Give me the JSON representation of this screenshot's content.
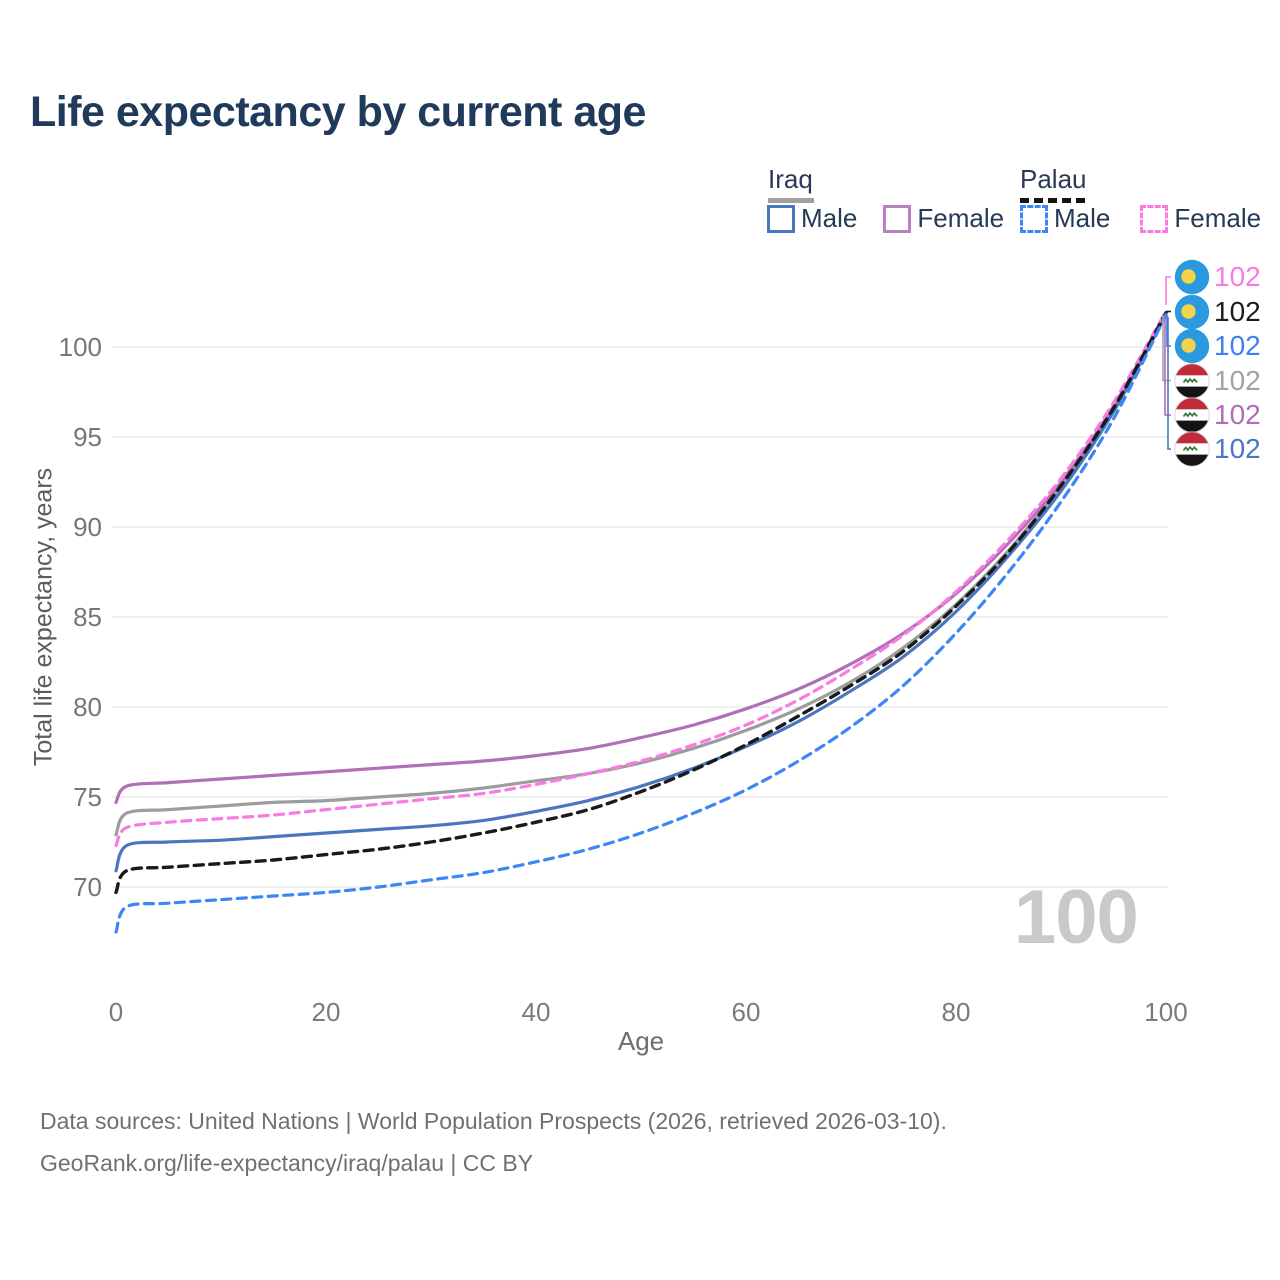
{
  "title": "Life expectancy by current age",
  "legend": {
    "groups": [
      {
        "name": "Iraq",
        "underline_style": "solid",
        "underline_color": "#a0a0a0",
        "items": [
          {
            "label": "Male",
            "color": "#4a76c0",
            "dashed": false
          },
          {
            "label": "Female",
            "color": "#bb80c4",
            "dashed": false
          }
        ]
      },
      {
        "name": "Palau",
        "underline_style": "dashed",
        "underline_color": "#141414",
        "items": [
          {
            "label": "Male",
            "color": "#3e86f5",
            "dashed": true
          },
          {
            "label": "Female",
            "color": "#fb7ae2",
            "dashed": true
          }
        ]
      }
    ]
  },
  "chart_data": {
    "type": "line",
    "title": "Life expectancy by current age",
    "xlabel": "Age",
    "ylabel": "Total life expectancy, years",
    "xlim": [
      0,
      100
    ],
    "ylim": [
      66.5,
      103
    ],
    "x_ticks": [
      0,
      20,
      40,
      60,
      80,
      100
    ],
    "y_ticks": [
      70,
      75,
      80,
      85,
      90,
      95,
      100
    ],
    "grid": "horizontal-only",
    "gridline_color": "#e7e7e7",
    "ages": [
      0,
      1,
      5,
      10,
      15,
      20,
      25,
      30,
      35,
      40,
      45,
      50,
      55,
      60,
      65,
      70,
      75,
      80,
      85,
      90,
      95,
      100
    ],
    "series": [
      {
        "name": "Iraq Female",
        "country": "Iraq",
        "sex": "Female",
        "color": "#b06fb8",
        "dashed": false,
        "values": [
          74.7,
          75.6,
          75.8,
          76.0,
          76.2,
          76.4,
          76.6,
          76.8,
          77.0,
          77.3,
          77.7,
          78.3,
          79.0,
          79.9,
          81.0,
          82.4,
          84.1,
          86.3,
          89.1,
          92.5,
          96.7,
          101.9
        ]
      },
      {
        "name": "Iraq Both sexes",
        "country": "Iraq",
        "sex": "Both",
        "color": "#9c9c9c",
        "dashed": false,
        "values": [
          72.9,
          74.1,
          74.3,
          74.5,
          74.7,
          74.8,
          75.0,
          75.2,
          75.5,
          75.9,
          76.3,
          76.9,
          77.7,
          78.7,
          79.9,
          81.4,
          83.3,
          85.7,
          88.7,
          92.3,
          96.6,
          101.9
        ]
      },
      {
        "name": "Iraq Male",
        "country": "Iraq",
        "sex": "Male",
        "color": "#4a76c0",
        "dashed": false,
        "values": [
          70.9,
          72.3,
          72.5,
          72.6,
          72.8,
          73.0,
          73.2,
          73.4,
          73.7,
          74.2,
          74.8,
          75.6,
          76.6,
          77.8,
          79.2,
          80.9,
          82.8,
          85.3,
          88.4,
          92.0,
          96.4,
          101.8
        ]
      },
      {
        "name": "Palau Female",
        "country": "Palau",
        "sex": "Female",
        "color": "#fb7ae2",
        "dashed": true,
        "values": [
          72.3,
          73.3,
          73.6,
          73.8,
          74.0,
          74.3,
          74.6,
          74.9,
          75.2,
          75.7,
          76.3,
          77.0,
          77.9,
          79.0,
          80.4,
          82.1,
          84.0,
          86.4,
          89.3,
          92.7,
          96.9,
          102.0
        ]
      },
      {
        "name": "Palau Both sexes",
        "country": "Palau",
        "sex": "Both",
        "color": "#1a1a1a",
        "dashed": true,
        "values": [
          69.7,
          70.9,
          71.1,
          71.3,
          71.5,
          71.8,
          72.1,
          72.5,
          73.0,
          73.6,
          74.3,
          75.3,
          76.5,
          77.9,
          79.5,
          81.2,
          83.1,
          85.6,
          88.6,
          92.3,
          96.6,
          101.9
        ]
      },
      {
        "name": "Palau Male",
        "country": "Palau",
        "sex": "Male",
        "color": "#3e86f5",
        "dashed": true,
        "values": [
          67.5,
          68.9,
          69.1,
          69.3,
          69.5,
          69.7,
          70.0,
          70.4,
          70.8,
          71.4,
          72.1,
          73.0,
          74.1,
          75.4,
          77.0,
          78.9,
          81.2,
          84.1,
          87.5,
          91.4,
          96.0,
          101.8
        ]
      }
    ],
    "end_labels": [
      {
        "value": "102",
        "color": "#fc7ae0",
        "flag": "palau",
        "series": "Palau Female"
      },
      {
        "value": "102",
        "color": "#1c1c1c",
        "flag": "palau",
        "series": "Palau Both sexes"
      },
      {
        "value": "102",
        "color": "#3b82f0",
        "flag": "palau",
        "series": "Palau Male"
      },
      {
        "value": "102",
        "color": "#a3a3a3",
        "flag": "iraq",
        "series": "Iraq Both sexes"
      },
      {
        "value": "102",
        "color": "#b06cb4",
        "flag": "iraq",
        "series": "Iraq Female"
      },
      {
        "value": "102",
        "color": "#4a77c4",
        "flag": "iraq",
        "series": "Iraq Male"
      }
    ],
    "age_indicator": "100",
    "flag_colors": {
      "palau_blue": "#2b99e0",
      "palau_yellow": "#f5d24b",
      "iraq_red": "#bf2b39",
      "iraq_white": "#ffffff",
      "iraq_black": "#141414",
      "iraq_green": "#2f7a33"
    }
  },
  "source": {
    "line1": "Data sources: United Nations | World Population Prospects (2026, retrieved 2026-03-10).",
    "line2": "GeoRank.org/life-expectancy/iraq/palau | CC BY"
  }
}
